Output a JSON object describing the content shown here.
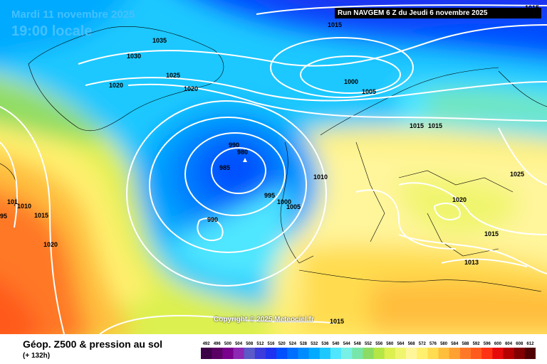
{
  "header": {
    "valid_date": "Mardi 11 novembre 2025",
    "local_time": "19:00 locale",
    "run_banner": "Run NAVGEM 6 Z du Jeudi 6 novembre 2025"
  },
  "copyright": "Copyright © 2025 Meteociel.fr",
  "footer": {
    "title": "Géop. Z500 & pression au sol",
    "lead_time": "(+ 132h)"
  },
  "scale": {
    "values": [
      "492",
      "496",
      "500",
      "504",
      "508",
      "512",
      "516",
      "520",
      "524",
      "528",
      "532",
      "536",
      "540",
      "544",
      "548",
      "552",
      "556",
      "560",
      "564",
      "568",
      "572",
      "576",
      "580",
      "584",
      "588",
      "592",
      "596",
      "600",
      "604",
      "608",
      "612"
    ],
    "colors": [
      "#3c0046",
      "#5a0064",
      "#78008c",
      "#8c28b4",
      "#5a5ac8",
      "#3c3cdc",
      "#1e32f0",
      "#0050ff",
      "#006eff",
      "#008cff",
      "#00aaff",
      "#1ec8ff",
      "#50e6ff",
      "#78f0e6",
      "#78e6aa",
      "#8cdc64",
      "#b4e646",
      "#dcf050",
      "#f0f56e",
      "#fff59b",
      "#fff06e",
      "#ffdc50",
      "#ffbe3c",
      "#ffa032",
      "#ff7828",
      "#ff5a1e",
      "#ff3214",
      "#e60a0a",
      "#b40000",
      "#820000",
      "#500000"
    ]
  },
  "isobar_labels": [
    "1035",
    "1030",
    "1025",
    "1020",
    "1020",
    "1015",
    "1000",
    "1005",
    "1015",
    "1025",
    "990",
    "980",
    "985",
    "1010",
    "995",
    "1000",
    "1005",
    "990",
    "1020",
    "1015",
    "1013",
    "1015",
    "1020",
    "1015",
    "1015",
    "101",
    "1010",
    "1015",
    "95"
  ]
}
